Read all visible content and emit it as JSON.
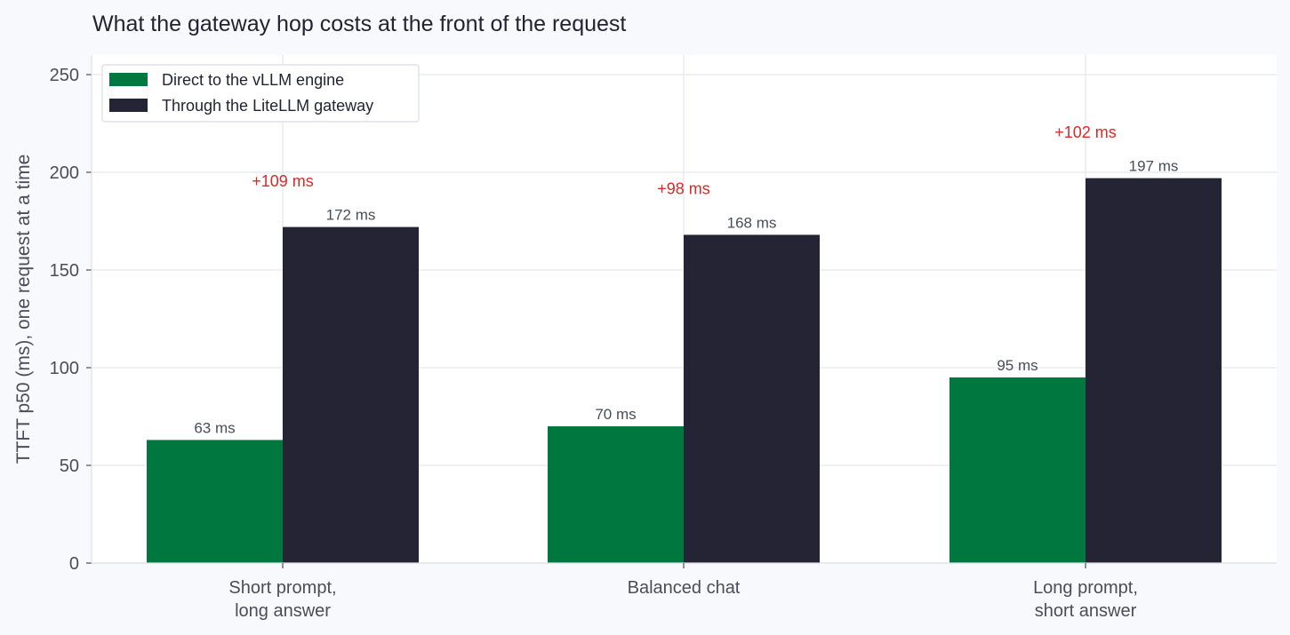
{
  "chart_data": {
    "type": "bar",
    "title": "What the gateway hop costs at the front of the request",
    "xlabel": "",
    "ylabel": "TTFT p50 (ms), one request at a time",
    "ylim": [
      0,
      260
    ],
    "yticks": [
      0,
      50,
      100,
      150,
      200,
      250
    ],
    "grid": true,
    "legend_position": "top-left",
    "categories": [
      [
        "Short prompt,",
        "long answer"
      ],
      [
        "Balanced chat"
      ],
      [
        "Long prompt,",
        "short answer"
      ]
    ],
    "series": [
      {
        "name": "Direct to the vLLM engine",
        "color": "#00773e",
        "values": [
          63,
          70,
          95
        ],
        "labels": [
          "63 ms",
          "70 ms",
          "95 ms"
        ]
      },
      {
        "name": "Through the LiteLLM gateway",
        "color": "#252434",
        "values": [
          172,
          168,
          197
        ],
        "labels": [
          "172 ms",
          "168 ms",
          "197 ms"
        ]
      }
    ],
    "annotations": [
      {
        "category_index": 0,
        "text": "+109 ms",
        "y": 196,
        "color": "#d62b2b"
      },
      {
        "category_index": 1,
        "text": "+98 ms",
        "y": 192,
        "color": "#d62b2b"
      },
      {
        "category_index": 2,
        "text": "+102 ms",
        "y": 221,
        "color": "#d62b2b"
      }
    ]
  }
}
